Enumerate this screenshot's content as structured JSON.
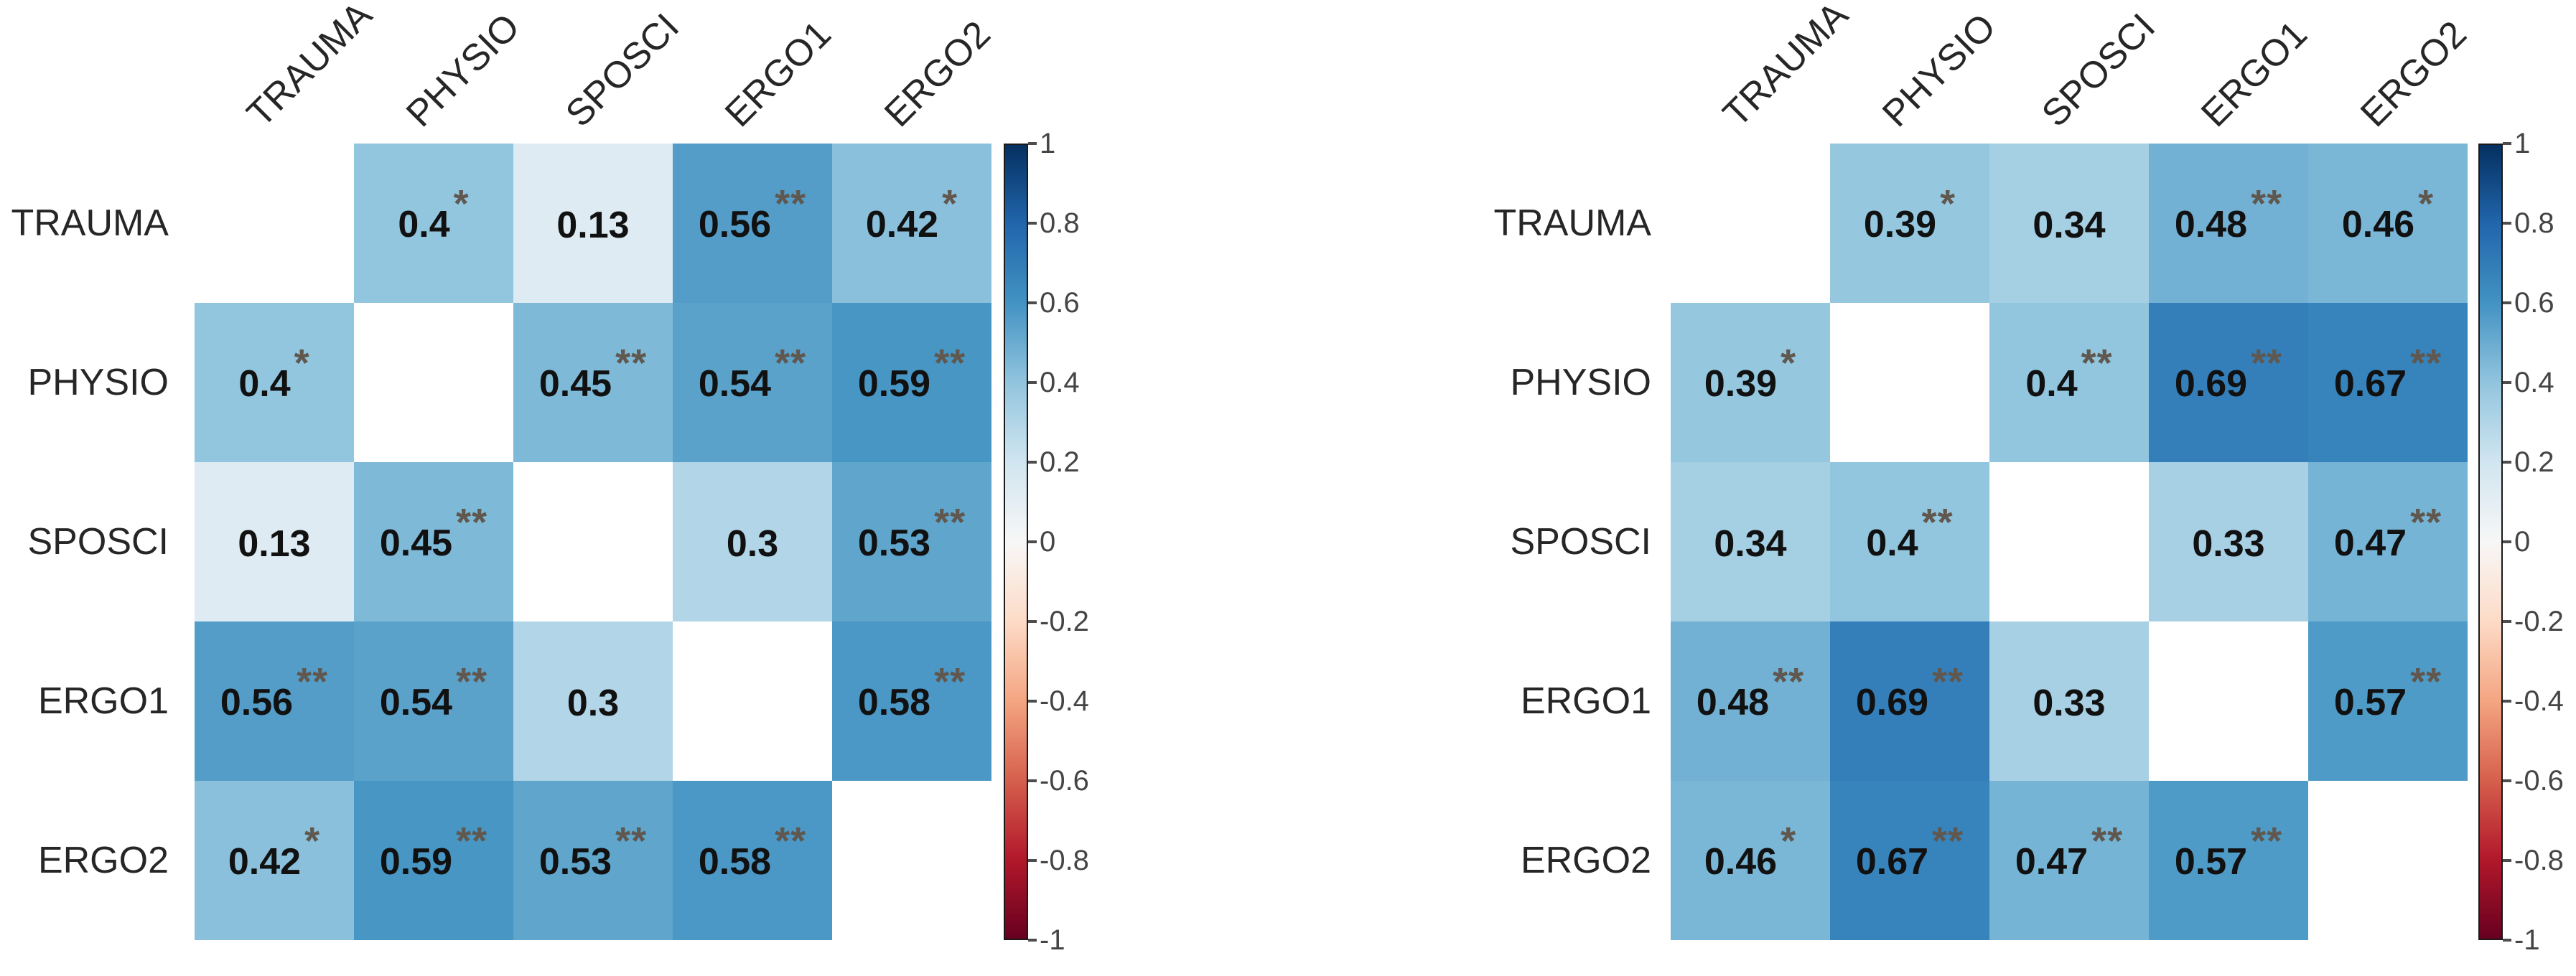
{
  "colors": {
    "background": "#ffffff",
    "cell_value_text": "#111111",
    "significance_star": "#60574e",
    "axis_label_text": "#262626",
    "colorbar_tick_text": "#454545",
    "colorbar_border": "#1a1a1a",
    "blank_cell": "#ffffff",
    "colormap_stops": [
      {
        "value": -1.0,
        "color": "#67001f"
      },
      {
        "value": -0.8,
        "color": "#b2182b"
      },
      {
        "value": -0.6,
        "color": "#d6604d"
      },
      {
        "value": -0.4,
        "color": "#f4a582"
      },
      {
        "value": -0.2,
        "color": "#fddbc7"
      },
      {
        "value": 0.0,
        "color": "#f7f7f7"
      },
      {
        "value": 0.2,
        "color": "#d1e5f0"
      },
      {
        "value": 0.4,
        "color": "#92c5de"
      },
      {
        "value": 0.6,
        "color": "#4393c3"
      },
      {
        "value": 0.8,
        "color": "#2166ac"
      },
      {
        "value": 1.0,
        "color": "#053061"
      }
    ]
  },
  "chart_data": [
    {
      "type": "heatmap",
      "title": "",
      "variables": [
        "TRAUMA",
        "PHYSIO",
        "SPOSCI",
        "ERGO1",
        "ERGO2"
      ],
      "matrix": [
        [
          null,
          0.4,
          0.13,
          0.56,
          0.42
        ],
        [
          0.4,
          null,
          0.45,
          0.54,
          0.59
        ],
        [
          0.13,
          0.45,
          null,
          0.3,
          0.53
        ],
        [
          0.56,
          0.54,
          0.3,
          null,
          0.58
        ],
        [
          0.42,
          0.59,
          0.53,
          0.58,
          null
        ]
      ],
      "stars": [
        [
          "",
          "*",
          "",
          "**",
          "*"
        ],
        [
          "*",
          "",
          "**",
          "**",
          "**"
        ],
        [
          "",
          "**",
          "",
          "",
          "**"
        ],
        [
          "**",
          "**",
          "",
          "",
          "**"
        ],
        [
          "*",
          "**",
          "**",
          "**",
          ""
        ]
      ],
      "colorbar": {
        "min": -1,
        "max": 1,
        "ticks": [
          1,
          0.8,
          0.6,
          0.4,
          0.2,
          0,
          -0.2,
          -0.4,
          -0.6,
          -0.8,
          -1
        ]
      }
    },
    {
      "type": "heatmap",
      "title": "",
      "variables": [
        "TRAUMA",
        "PHYSIO",
        "SPOSCI",
        "ERGO1",
        "ERGO2"
      ],
      "matrix": [
        [
          null,
          0.39,
          0.34,
          0.48,
          0.46
        ],
        [
          0.39,
          null,
          0.4,
          0.69,
          0.67
        ],
        [
          0.34,
          0.4,
          null,
          0.33,
          0.47
        ],
        [
          0.48,
          0.69,
          0.33,
          null,
          0.57
        ],
        [
          0.46,
          0.67,
          0.47,
          0.57,
          null
        ]
      ],
      "stars": [
        [
          "",
          "*",
          "",
          "**",
          "*"
        ],
        [
          "*",
          "",
          "**",
          "**",
          "**"
        ],
        [
          "",
          "**",
          "",
          "",
          "**"
        ],
        [
          "**",
          "**",
          "",
          "",
          "**"
        ],
        [
          "*",
          "**",
          "**",
          "**",
          ""
        ]
      ],
      "colorbar": {
        "min": -1,
        "max": 1,
        "ticks": [
          1,
          0.8,
          0.6,
          0.4,
          0.2,
          0,
          -0.2,
          -0.4,
          -0.6,
          -0.8,
          -1
        ]
      }
    }
  ]
}
